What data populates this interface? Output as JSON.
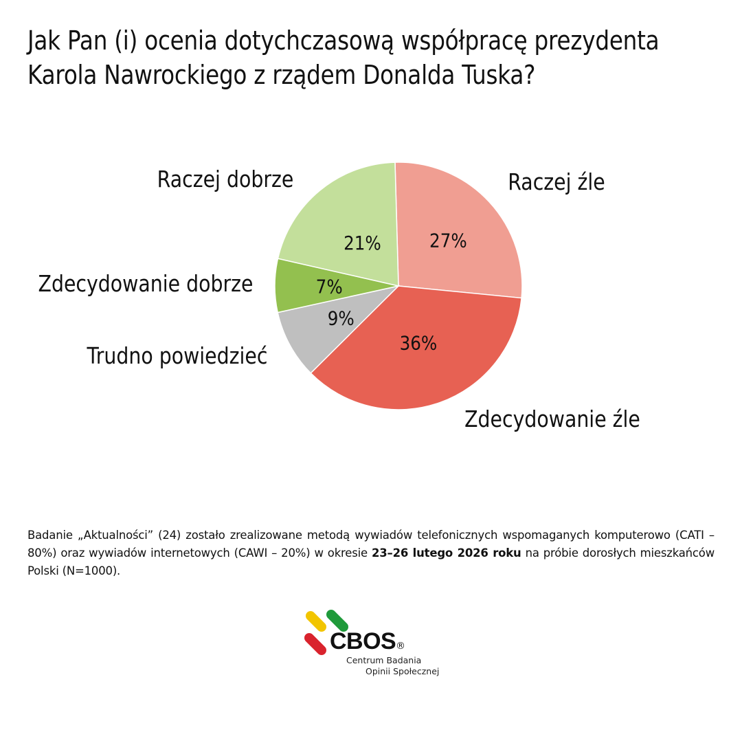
{
  "title": {
    "line1": "Jak Pan (i) ocenia dotychczasową współpracę prezydenta",
    "line2": "Karola Nawrockiego z rządem Donalda Tuska?"
  },
  "chart_data": {
    "type": "pie",
    "slices": [
      {
        "label": "Raczej źle",
        "value": 27,
        "value_label": "27%",
        "color": "#f09e92"
      },
      {
        "label": "Zdecydowanie źle",
        "value": 36,
        "value_label": "36%",
        "color": "#e76153"
      },
      {
        "label": "Trudno powiedzieć",
        "value": 9,
        "value_label": "9%",
        "color": "#bfbfbf"
      },
      {
        "label": "Zdecydowanie dobrze",
        "value": 7,
        "value_label": "7%",
        "color": "#93c04f"
      },
      {
        "label": "Raczej dobrze",
        "value": 21,
        "value_label": "21%",
        "color": "#c3df9b"
      }
    ]
  },
  "note": {
    "text_before": "Badanie „Aktualności” (24) zostało zrealizowane metodą wywiadów telefonicznych wspomaganych komputerowo (CATI – 80%) oraz wywiadów internetowych (CAWI – 20%) w okresie ",
    "text_bold": "23–26 lutego 2026 roku",
    "text_after": " na próbie dorosłych mieszkańców Polski (N=1000)."
  },
  "logo": {
    "brand": "CBOS",
    "registered": "®",
    "line1": "Centrum Badania",
    "line2": "Opinii Społecznej",
    "colors": {
      "yellow": "#f2c500",
      "green": "#1f9a3a",
      "red": "#d9232d"
    }
  }
}
